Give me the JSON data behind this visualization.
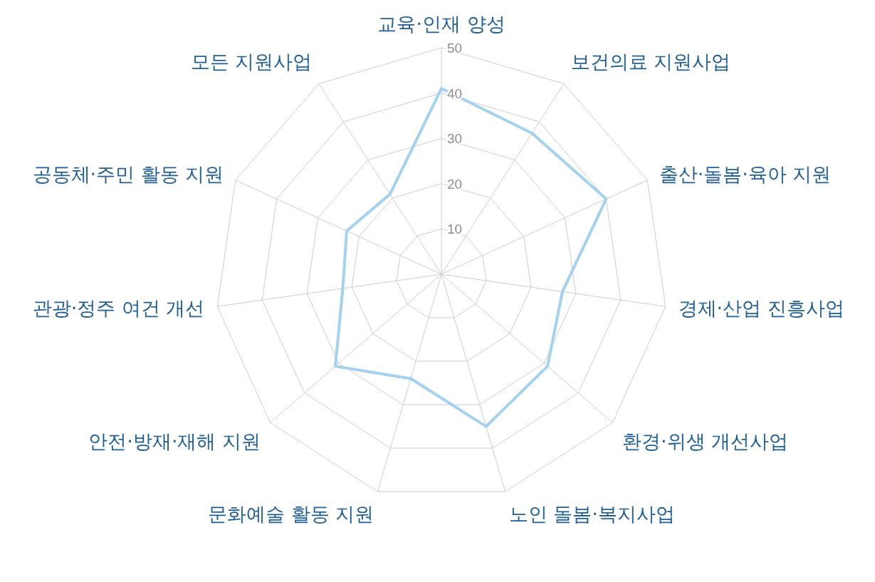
{
  "chart_data": {
    "type": "radar",
    "categories": [
      "교육·인재 양성",
      "보건의료 지원사업",
      "출산·돌봄·육아 지원",
      "경제·산업 진흥사업",
      "환경·위생 개선사업",
      "노인 돌봄·복지사업",
      "문화예술 활동 지원",
      "안전·방재·재해 지원",
      "관광·정주 여건 개선",
      "공동체·주민 활동 지원",
      "모든 지원사업"
    ],
    "series": [
      {
        "color": "#a3d1f0",
        "values": [
          41,
          37,
          40,
          27,
          31,
          35,
          24,
          31,
          22,
          23,
          21
        ]
      }
    ],
    "ylim": [
      0,
      50
    ],
    "yticks": [
      10,
      20,
      30,
      40,
      50
    ],
    "grid": true,
    "line_style": "solid",
    "marker": "none"
  }
}
